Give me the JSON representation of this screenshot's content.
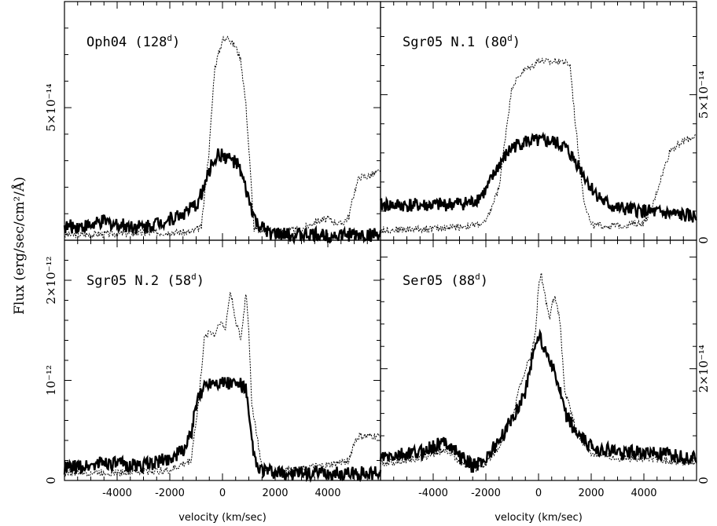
{
  "figure": {
    "ylabel": "Flux (erg/sec/cm²/Å)",
    "xlabel": "velocity (km/sec)"
  },
  "chart_data": [
    {
      "type": "line",
      "panel": "top-left",
      "annotation": "Oph04 (128d)",
      "annotation_main": "Oph04 (128",
      "annotation_sup": "d",
      "annotation_end": ")",
      "xlim": [
        -6000,
        6000
      ],
      "ylim": [
        0,
        9e-14
      ],
      "yticks": [
        {
          "value": 5e-14,
          "label": "5×10⁻¹⁴"
        }
      ],
      "xticks": [],
      "series": [
        {
          "style": "dashed",
          "x": [
            -6000,
            -4000,
            -2000,
            -1200,
            -800,
            -500,
            -300,
            -100,
            0,
            100,
            200,
            300,
            500,
            700,
            900,
            1200,
            2000,
            3000,
            3500,
            4000,
            4500,
            4800,
            5000,
            5200,
            5500,
            6000
          ],
          "y": [
            2e-15,
            2.5e-15,
            3e-15,
            3e-15,
            5e-15,
            3.5e-14,
            6.5e-14,
            7.2e-14,
            7.6e-14,
            7.5e-14,
            7.8e-14,
            7.5e-14,
            7.3e-14,
            6.8e-14,
            5e-14,
            4e-15,
            3e-15,
            4e-15,
            7e-15,
            8e-15,
            6e-15,
            9e-15,
            1.8e-14,
            2.4e-14,
            2.4e-14,
            2.6e-14
          ]
        },
        {
          "style": "solid",
          "x": [
            -6000,
            -5000,
            -4500,
            -4000,
            -3000,
            -2000,
            -1500,
            -1000,
            -700,
            -400,
            -200,
            0,
            200,
            400,
            600,
            800,
            1000,
            1300,
            1700,
            2200,
            3000,
            4000,
            5000,
            6000
          ],
          "y": [
            5e-15,
            5.5e-15,
            7e-15,
            6e-15,
            5e-15,
            8e-15,
            1e-14,
            1.3e-14,
            2e-14,
            2.9e-14,
            3.2e-14,
            3.2e-14,
            3.1e-14,
            3e-14,
            2.8e-14,
            2.2e-14,
            1.5e-14,
            6e-15,
            3e-15,
            2e-15,
            2e-15,
            2e-15,
            2e-15,
            2e-15
          ]
        }
      ]
    },
    {
      "type": "line",
      "panel": "top-right",
      "annotation": "Sgr05 N.1 (80d)",
      "annotation_main": "Sgr05 N.1 (80",
      "annotation_sup": "d",
      "annotation_end": ")",
      "xlim": [
        -6000,
        6000
      ],
      "ylim": [
        0,
        8.2e-14
      ],
      "yticks": [
        {
          "value": 0,
          "label": "0"
        },
        {
          "value": 5e-14,
          "label": "5×10⁻¹⁴"
        }
      ],
      "xticks": [],
      "series": [
        {
          "style": "dashed",
          "x": [
            -6000,
            -4000,
            -2500,
            -2000,
            -1500,
            -1200,
            -1000,
            -600,
            -200,
            0,
            400,
            800,
            1200,
            1400,
            1700,
            2000,
            3000,
            4000,
            4300,
            4600,
            5000,
            5500,
            6000
          ],
          "y": [
            3.5e-15,
            4e-15,
            5e-15,
            6e-15,
            1.8e-14,
            4e-14,
            5.3e-14,
            5.8e-14,
            6e-14,
            6.2e-14,
            6.1e-14,
            6.2e-14,
            6e-14,
            4e-14,
            1.5e-14,
            5e-15,
            5e-15,
            6e-15,
            1.1e-14,
            2e-14,
            3.1e-14,
            3.4e-14,
            3.6e-14
          ]
        },
        {
          "style": "solid",
          "x": [
            -6000,
            -4000,
            -2500,
            -2000,
            -1500,
            -1000,
            -500,
            0,
            500,
            1000,
            1500,
            2000,
            2500,
            3000,
            4000,
            5000,
            6000
          ],
          "y": [
            1.2e-14,
            1.2e-14,
            1.3e-14,
            1.7e-14,
            2.6e-14,
            3.2e-14,
            3.4e-14,
            3.4e-14,
            3.4e-14,
            3.2e-14,
            2.6e-14,
            1.8e-14,
            1.3e-14,
            1.1e-14,
            1e-14,
            9e-15,
            8e-15
          ]
        }
      ]
    },
    {
      "type": "line",
      "panel": "bottom-left",
      "annotation": "Sgr05 N.2 (58d)",
      "annotation_main": "Sgr05 N.2 (58",
      "annotation_sup": "d",
      "annotation_end": ")",
      "xlim": [
        -6000,
        6000
      ],
      "ylim": [
        0,
        2.4e-12
      ],
      "yticks": [
        {
          "value": 0,
          "label": "0"
        },
        {
          "value": 1e-12,
          "label": "10⁻¹²"
        },
        {
          "value": 2e-12,
          "label": "2×10⁻¹²"
        }
      ],
      "xticks": [
        -4000,
        -2000,
        0,
        2000,
        4000
      ],
      "series": [
        {
          "style": "dashed",
          "x": [
            -6000,
            -4000,
            -2000,
            -1200,
            -900,
            -700,
            -500,
            -300,
            -100,
            100,
            300,
            500,
            700,
            900,
            1000,
            1100,
            1500,
            2000,
            3000,
            4000,
            4800,
            5000,
            5200,
            6000
          ],
          "y": [
            8e-14,
            8e-14,
            1e-13,
            2e-13,
            8e-13,
            1.4e-12,
            1.5e-12,
            1.45e-12,
            1.6e-12,
            1.5e-12,
            1.9e-12,
            1.6e-12,
            1.4e-12,
            1.9e-12,
            1.5e-12,
            8e-13,
            1.2e-13,
            1e-13,
            1.2e-13,
            1.5e-13,
            2e-13,
            3.8e-13,
            4.4e-13,
            4.4e-13
          ]
        },
        {
          "style": "solid",
          "x": [
            -6000,
            -5000,
            -4500,
            -4000,
            -3000,
            -2000,
            -1500,
            -1200,
            -1000,
            -700,
            -400,
            0,
            400,
            700,
            900,
            1050,
            1300,
            2000,
            3000,
            4000,
            5000,
            6000
          ],
          "y": [
            1.2e-13,
            1.5e-13,
            1.9e-13,
            1.6e-13,
            1.5e-13,
            2.2e-13,
            3e-13,
            4.5e-13,
            7.5e-13,
            9.5e-13,
            1e-12,
            9.8e-13,
            9.7e-13,
            9.6e-13,
            9e-13,
            5e-13,
            1.2e-13,
            7e-14,
            7e-14,
            7e-14,
            7e-14,
            7e-14
          ]
        }
      ]
    },
    {
      "type": "line",
      "panel": "bottom-right",
      "annotation": "Ser05 (88d)",
      "annotation_main": "Ser05 (88",
      "annotation_sup": "d",
      "annotation_end": ")",
      "xlim": [
        -6000,
        6000
      ],
      "ylim": [
        0,
        4.3e-14
      ],
      "yticks": [
        {
          "value": 0,
          "label": "0"
        },
        {
          "value": 2e-14,
          "label": "2×10⁻¹⁴"
        }
      ],
      "xticks": [
        -4000,
        -2000,
        0,
        2000,
        4000
      ],
      "series": [
        {
          "style": "dashed",
          "x": [
            -6000,
            -4500,
            -3500,
            -3000,
            -2500,
            -2000,
            -1500,
            -1000,
            -700,
            -500,
            -300,
            -100,
            0,
            100,
            200,
            400,
            600,
            800,
            1000,
            1500,
            2000,
            3000,
            4000,
            5000,
            6000
          ],
          "y": [
            3e-15,
            4e-15,
            5.5e-15,
            3.5e-15,
            2e-15,
            3e-15,
            6e-15,
            1.1e-14,
            1.7e-14,
            2e-14,
            2.2e-14,
            2.7e-14,
            3.5e-14,
            3.7e-14,
            3.4e-14,
            2.9e-14,
            3.3e-14,
            2.9e-14,
            1.6e-14,
            8e-15,
            5e-15,
            4e-15,
            4e-15,
            3.5e-15,
            3e-15
          ]
        },
        {
          "style": "solid",
          "x": [
            -6000,
            -4500,
            -3500,
            -3000,
            -2500,
            -2000,
            -1500,
            -1000,
            -500,
            -200,
            0,
            200,
            500,
            800,
            1000,
            1500,
            2000,
            3000,
            4000,
            5000,
            6000
          ],
          "y": [
            4e-15,
            5e-15,
            7e-15,
            4.5e-15,
            2.5e-15,
            4e-15,
            7e-15,
            1.1e-14,
            1.6e-14,
            2.3e-14,
            2.6e-14,
            2.4e-14,
            2.1e-14,
            1.6e-14,
            1.2e-14,
            8e-15,
            6e-15,
            5e-15,
            5e-15,
            4.5e-15,
            4e-15
          ]
        }
      ]
    }
  ]
}
